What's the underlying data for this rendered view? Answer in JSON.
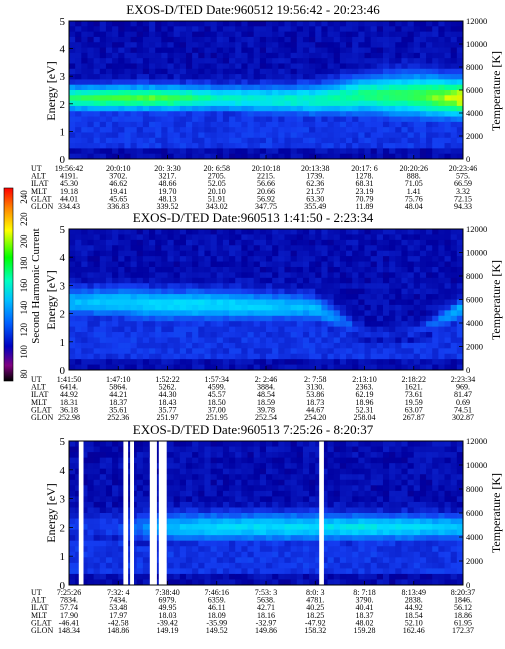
{
  "colorbar": {
    "label": "Second Harmonic Current",
    "ticks": [
      "240",
      "220",
      "200",
      "180",
      "160",
      "140",
      "120",
      "100",
      "80"
    ],
    "colors": [
      "#ff0000",
      "#ff8000",
      "#ffff00",
      "#00ff00",
      "#00ffc0",
      "#00c0ff",
      "#0060ff",
      "#0000c0",
      "#800080",
      "#000000"
    ]
  },
  "panels": [
    {
      "title": "EXOS-D/TED   Date:960512  19:56:42 - 20:23:46",
      "ylabel": "Energy [eV]",
      "y2label": "Temperature [K]",
      "ylim": [
        0,
        5
      ],
      "yticks": [
        "0",
        "1",
        "2",
        "3",
        "4",
        "5"
      ],
      "y2lim": [
        0,
        12000
      ],
      "y2ticks": [
        "0",
        "2000",
        "4000",
        "6000",
        "8000",
        "10000",
        "12000"
      ],
      "rows": [
        [
          "UT",
          "19:56:42",
          "20:0:10",
          "20: 3:30",
          "20: 6:58",
          "20:10:18",
          "20:13:38",
          "20:17: 6",
          "20:20:26",
          "20:23:46"
        ],
        [
          "ALT",
          "4191.",
          "3702.",
          "3217.",
          "2705.",
          "2215.",
          "1739.",
          "1278.",
          "888.",
          "575."
        ],
        [
          "ILAT",
          "45.30",
          "46.62",
          "48.66",
          "52.05",
          "56.66",
          "62.36",
          "68.31",
          "71.05",
          "66.59"
        ],
        [
          "MLT",
          "19.18",
          "19.41",
          "19.70",
          "20.10",
          "20.66",
          "21.57",
          "23.19",
          "1.41",
          "3.32"
        ],
        [
          "GLAT",
          "44.01",
          "45.65",
          "48.13",
          "51.91",
          "56.92",
          "63.30",
          "70.79",
          "75.76",
          "72.15"
        ],
        [
          "GLON",
          "334.43",
          "336.83",
          "339.52",
          "343.02",
          "347.75",
          "355.49",
          "11.89",
          "48.04",
          "94.33"
        ]
      ]
    },
    {
      "title": "EXOS-D/TED   Date:960513  1:41:50 - 2:23:34",
      "ylabel": "Energy [eV]",
      "y2label": "Temperature [K]",
      "ylim": [
        0,
        5
      ],
      "yticks": [
        "0",
        "1",
        "2",
        "3",
        "4",
        "5"
      ],
      "y2lim": [
        0,
        12000
      ],
      "y2ticks": [
        "0",
        "2000",
        "4000",
        "6000",
        "8000",
        "10000",
        "12000"
      ],
      "rows": [
        [
          "UT",
          "1:41:50",
          "1:47:10",
          "1:52:22",
          "1:57:34",
          "2: 2:46",
          "2: 7:58",
          "2:13:10",
          "2:18:22",
          "2:23:34"
        ],
        [
          "ALT",
          "6414.",
          "5864.",
          "5262.",
          "4599.",
          "3884.",
          "3130.",
          "2363.",
          "1621.",
          "969."
        ],
        [
          "ILAT",
          "44.92",
          "44.21",
          "44.30",
          "45.57",
          "48.54",
          "53.86",
          "62.19",
          "73.61",
          "81.47"
        ],
        [
          "MLT",
          "18.31",
          "18.37",
          "18.43",
          "18.50",
          "18.59",
          "18.73",
          "18.96",
          "19.59",
          "0.69"
        ],
        [
          "GLAT",
          "36.18",
          "35.61",
          "35.77",
          "37.00",
          "39.78",
          "44.67",
          "52.31",
          "63.07",
          "74.51"
        ],
        [
          "GLON",
          "252.98",
          "252.36",
          "251.97",
          "251.95",
          "252.54",
          "254.20",
          "258.04",
          "267.87",
          "302.87"
        ]
      ]
    },
    {
      "title": "EXOS-D/TED   Date:960513  7:25:26 - 8:20:37",
      "ylabel": "Energy [eV]",
      "y2label": "Temperature [K]",
      "ylim": [
        0,
        5
      ],
      "yticks": [
        "0",
        "1",
        "2",
        "3",
        "4",
        "5"
      ],
      "y2lim": [
        0,
        12000
      ],
      "y2ticks": [
        "0",
        "2000",
        "4000",
        "6000",
        "8000",
        "10000",
        "12000"
      ],
      "rows": [
        [
          "UT",
          "7:25:26",
          "7:32: 4",
          "7:38:40",
          "7:46:16",
          "7:53: 3",
          "8:0: 3",
          "8: 7:18",
          "8:13:49",
          "8:20:37"
        ],
        [
          "ALT",
          "7834.",
          "7434.",
          "6979.",
          "6359.",
          "5638.",
          "4781.",
          "3790.",
          "2838.",
          "1846."
        ],
        [
          "ILAT",
          "57.74",
          "53.48",
          "49.95",
          "46.11",
          "42.71",
          "40.25",
          "40.41",
          "44.92",
          "56.12"
        ],
        [
          "MLT",
          "17.90",
          "17.97",
          "18.03",
          "18.09",
          "18.16",
          "18.25",
          "18.37",
          "18.54",
          "18.86"
        ],
        [
          "GLAT",
          "-46.41",
          "-42.58",
          "-39.42",
          "-35.99",
          "-32.97",
          "-47.92",
          "48.02",
          "52.10",
          "61.95"
        ],
        [
          "GLON",
          "148.34",
          "148.86",
          "149.19",
          "149.52",
          "149.86",
          "158.32",
          "159.28",
          "162.46",
          "172.37"
        ]
      ]
    }
  ],
  "chart_data": [
    {
      "type": "heatmap",
      "title": "EXOS-D/TED   Date:960512  19:56:42 - 20:23:46",
      "xlabel": "UT",
      "ylabel": "Energy [eV]",
      "y2label": "Temperature [K]",
      "ylim": [
        0,
        5
      ],
      "y2lim": [
        0,
        12000
      ],
      "x": [
        "19:56:42",
        "20:0:10",
        "20: 3:30",
        "20: 6:58",
        "20:10:18",
        "20:13:38",
        "20:17: 6",
        "20:20:26",
        "20:23:46"
      ],
      "band_center_eV": [
        2.2,
        2.2,
        2.2,
        2.2,
        2.15,
        2.15,
        2.3,
        2.3,
        2.2
      ],
      "band_halfwidth_eV": [
        0.5,
        0.5,
        0.5,
        0.5,
        0.55,
        0.6,
        0.75,
        0.85,
        0.8
      ],
      "peak_intensity": [
        190,
        200,
        200,
        175,
        170,
        175,
        185,
        195,
        220
      ]
    },
    {
      "type": "heatmap",
      "title": "EXOS-D/TED   Date:960513  1:41:50 - 2:23:34",
      "xlabel": "UT",
      "ylabel": "Energy [eV]",
      "y2label": "Temperature [K]",
      "ylim": [
        0,
        5
      ],
      "y2lim": [
        0,
        12000
      ],
      "x": [
        "1:41:50",
        "1:47:10",
        "1:52:22",
        "1:57:34",
        "2: 2:46",
        "2: 7:58",
        "2:13:10",
        "2:18:22",
        "2:23:34"
      ],
      "band_center_eV": [
        2.4,
        2.4,
        2.3,
        2.3,
        2.25,
        2.2,
        1.3,
        1.3,
        2.2
      ],
      "band_halfwidth_eV": [
        0.55,
        0.6,
        0.6,
        0.6,
        0.55,
        0.5,
        0.3,
        0.3,
        0.4
      ],
      "peak_intensity": [
        150,
        155,
        160,
        160,
        155,
        150,
        115,
        115,
        150
      ]
    },
    {
      "type": "heatmap",
      "title": "EXOS-D/TED   Date:960513  7:25:26 - 8:20:37",
      "xlabel": "UT",
      "ylabel": "Energy [eV]",
      "y2label": "Temperature [K]",
      "ylim": [
        0,
        5
      ],
      "y2lim": [
        0,
        12000
      ],
      "x": [
        "7:25:26",
        "7:32: 4",
        "7:38:40",
        "7:46:16",
        "7:53: 3",
        "8:0: 3",
        "8: 7:18",
        "8:13:49",
        "8:20:37"
      ],
      "band_center_eV": [
        2.0,
        2.0,
        2.0,
        2.0,
        2.0,
        2.0,
        2.0,
        2.0,
        2.0
      ],
      "band_halfwidth_eV": [
        0.5,
        0.5,
        0.55,
        0.55,
        0.55,
        0.55,
        0.5,
        0.5,
        0.45
      ],
      "peak_intensity": [
        120,
        120,
        150,
        160,
        160,
        160,
        165,
        160,
        155
      ]
    }
  ]
}
